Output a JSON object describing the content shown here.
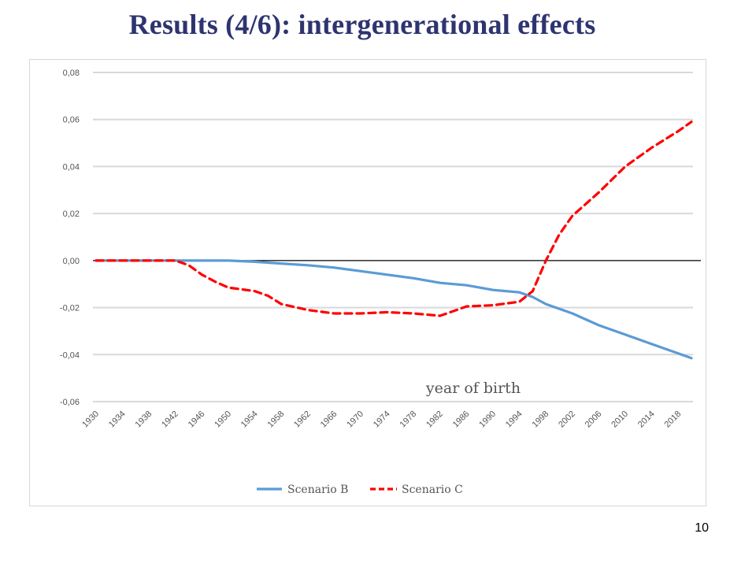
{
  "slide": {
    "title": "Results (4/6): intergenerational effects",
    "page_number": "10"
  },
  "colors": {
    "title": "#2e3470",
    "scenario_b": "#5b9bd5",
    "scenario_c": "#ff0000",
    "grid": "#d9d9d9",
    "zero_line": "#000000"
  },
  "chart_data": {
    "type": "line",
    "xlabel": "year of birth",
    "ylabel": "",
    "ylim": [
      -0.06,
      0.08
    ],
    "yticks": [
      0.08,
      0.06,
      0.04,
      0.02,
      0.0,
      -0.02,
      -0.04,
      -0.06
    ],
    "ytick_labels": [
      "0,08",
      "0,06",
      "0,04",
      "0,02",
      "0,00",
      "-0,02",
      "-0,04",
      "-0,06"
    ],
    "xlim": [
      1930,
      2020
    ],
    "xticks": [
      1930,
      1934,
      1938,
      1942,
      1946,
      1950,
      1954,
      1958,
      1962,
      1966,
      1970,
      1974,
      1978,
      1982,
      1986,
      1990,
      1994,
      1998,
      2002,
      2006,
      2010,
      2014,
      2018
    ],
    "grid": "horizontal",
    "legend_position": "bottom",
    "series": [
      {
        "name": "Scenario B",
        "style": "solid",
        "x": [
          1930,
          1934,
          1938,
          1942,
          1946,
          1950,
          1954,
          1958,
          1962,
          1966,
          1970,
          1974,
          1978,
          1982,
          1986,
          1990,
          1994,
          1996,
          1998,
          2002,
          2006,
          2010,
          2014,
          2018,
          2020
        ],
        "values": [
          0.0,
          0.0,
          0.0,
          0.0,
          0.0,
          0.0,
          -0.0005,
          -0.0013,
          -0.002,
          -0.003,
          -0.0045,
          -0.006,
          -0.0075,
          -0.0095,
          -0.0105,
          -0.0125,
          -0.0135,
          -0.0155,
          -0.0185,
          -0.0225,
          -0.0275,
          -0.0315,
          -0.0355,
          -0.0395,
          -0.0415
        ]
      },
      {
        "name": "Scenario C",
        "style": "dashed",
        "x": [
          1930,
          1934,
          1938,
          1942,
          1944,
          1946,
          1948,
          1950,
          1954,
          1956,
          1958,
          1962,
          1966,
          1970,
          1974,
          1978,
          1982,
          1984,
          1986,
          1990,
          1994,
          1996,
          1998,
          2000,
          2002,
          2006,
          2010,
          2014,
          2018,
          2020
        ],
        "values": [
          0.0,
          0.0,
          0.0,
          0.0,
          -0.002,
          -0.006,
          -0.009,
          -0.0115,
          -0.013,
          -0.015,
          -0.0185,
          -0.021,
          -0.0225,
          -0.0225,
          -0.022,
          -0.0225,
          -0.0235,
          -0.0215,
          -0.0195,
          -0.019,
          -0.0175,
          -0.013,
          0.0,
          0.011,
          0.019,
          0.029,
          0.04,
          0.048,
          0.055,
          0.059
        ]
      }
    ]
  }
}
